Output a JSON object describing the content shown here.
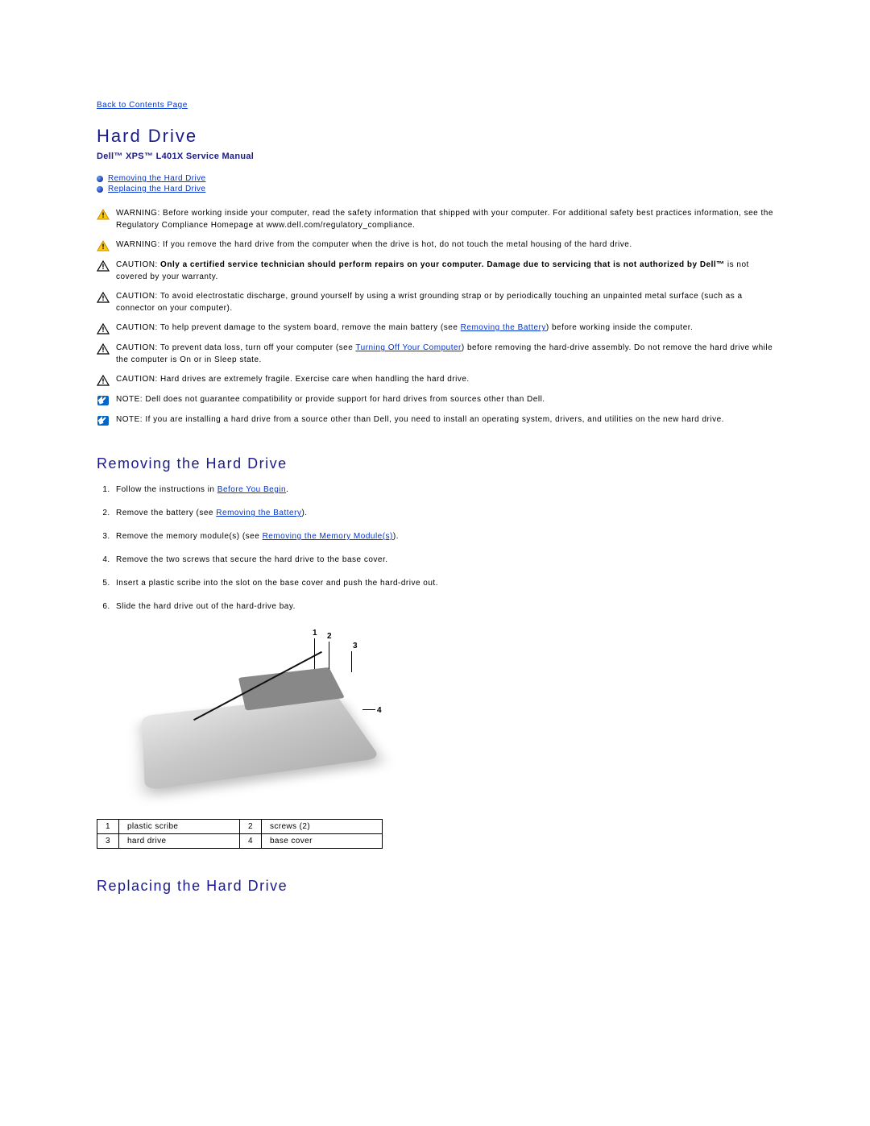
{
  "colors": {
    "link": "#0033cc",
    "heading": "#1a1a8a",
    "text": "#000000",
    "warning_fill": "#ffcc00",
    "warning_border": "#cc8800",
    "caution_border": "#000000",
    "note_fill": "#0066cc"
  },
  "back_link": "Back to Contents Page",
  "title": "Hard Drive",
  "subtitle": "Dell™ XPS™ L401X Service Manual",
  "toc": [
    {
      "label": "Removing the Hard Drive"
    },
    {
      "label": "Replacing the Hard Drive"
    }
  ],
  "notices": [
    {
      "type": "warning",
      "lead": "WARNING:",
      "text": " Before working inside your computer, read the safety information that shipped with your computer. For additional safety best practices information, see the Regulatory Compliance Homepage at www.dell.com/regulatory_compliance."
    },
    {
      "type": "warning",
      "lead": "WARNING:",
      "text": " If you remove the hard drive from the computer when the drive is hot, do not touch the metal housing of the hard drive."
    },
    {
      "type": "caution",
      "lead": "CAUTION:",
      "bold_text": " Only a certified service technician should perform repairs on your computer. Damage due to servicing that is not authorized by Dell™",
      "text": " is not covered by your warranty."
    },
    {
      "type": "caution",
      "lead": "CAUTION:",
      "text": " To avoid electrostatic discharge, ground yourself by using a wrist grounding strap or by periodically touching an unpainted metal surface (such as a connector on your computer)."
    },
    {
      "type": "caution",
      "lead": "CAUTION:",
      "text_pre": " To help prevent damage to the system board, remove the main battery (see ",
      "link": "Removing the Battery",
      "text_post": ") before working inside the computer."
    },
    {
      "type": "caution",
      "lead": "CAUTION:",
      "text_pre": " To prevent data loss, turn off your computer (see ",
      "link": "Turning Off Your Computer",
      "text_post": ") before removing the hard-drive assembly. Do not remove the hard drive while the computer is On or in Sleep state."
    },
    {
      "type": "caution",
      "lead": "CAUTION:",
      "text": " Hard drives are extremely fragile. Exercise care when handling the hard drive."
    },
    {
      "type": "note",
      "lead": "NOTE:",
      "text": " Dell does not guarantee compatibility or provide support for hard drives from sources other than Dell."
    },
    {
      "type": "note",
      "lead": "NOTE:",
      "text": " If you are installing a hard drive from a source other than Dell, you need to install an operating system, drivers, and utilities on the new hard drive."
    }
  ],
  "section_remove": {
    "title": "Removing the Hard Drive",
    "steps": [
      {
        "text_pre": "Follow the instructions in ",
        "link": "Before You Begin",
        "text_post": "."
      },
      {
        "text_pre": "Remove the battery (see ",
        "link": "Removing the Battery",
        "text_post": ")."
      },
      {
        "text_pre": "Remove the memory module(s) (see ",
        "link": "Removing the Memory Module(s)",
        "text_post": ")."
      },
      {
        "text": "Remove the two screws that secure the hard drive to the base cover."
      },
      {
        "text": "Insert a plastic scribe into the slot on the base cover and push the hard-drive out."
      },
      {
        "text": "Slide the hard drive out of the hard-drive bay."
      }
    ]
  },
  "figure": {
    "callouts": [
      "1",
      "2",
      "3",
      "4"
    ]
  },
  "parts_table": {
    "rows": [
      [
        "1",
        "plastic scribe",
        "2",
        "screws (2)"
      ],
      [
        "3",
        "hard drive",
        "4",
        "base cover"
      ]
    ]
  },
  "section_replace": {
    "title": "Replacing the Hard Drive"
  }
}
